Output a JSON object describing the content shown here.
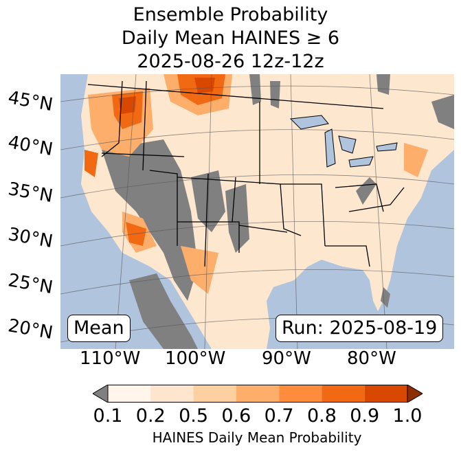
{
  "title": {
    "line1": "Ensemble Probability",
    "line2": "Daily Mean HAINES ≥ 6",
    "line3": "2025-08-26 12z-12z"
  },
  "lat_labels": [
    "45°N",
    "40°N",
    "35°N",
    "30°N",
    "25°N",
    "20°N"
  ],
  "lon_labels": [
    "110°W",
    "100°W",
    "90°W",
    "80°W"
  ],
  "mean_label": "Mean",
  "run_label": "Run: 2025-08-19",
  "colorbar": {
    "ticks": [
      "0.1",
      "0.2",
      "0.5",
      "0.6",
      "0.7",
      "0.8",
      "0.9",
      "1.0"
    ],
    "colors": [
      "#fff5eb",
      "#fee6ce",
      "#fdd0a2",
      "#fdae6b",
      "#fd8d3c",
      "#f16913",
      "#d94801",
      "#8c2d04"
    ],
    "under_color": "#808080",
    "label": "HAINES Daily Mean Probability"
  },
  "colors": {
    "ocean": "#b0c4de",
    "missing": "#808080",
    "low": "#fde7cf",
    "mid": "#fdae6b",
    "high": "#f16913",
    "very_high": "#d94801"
  }
}
